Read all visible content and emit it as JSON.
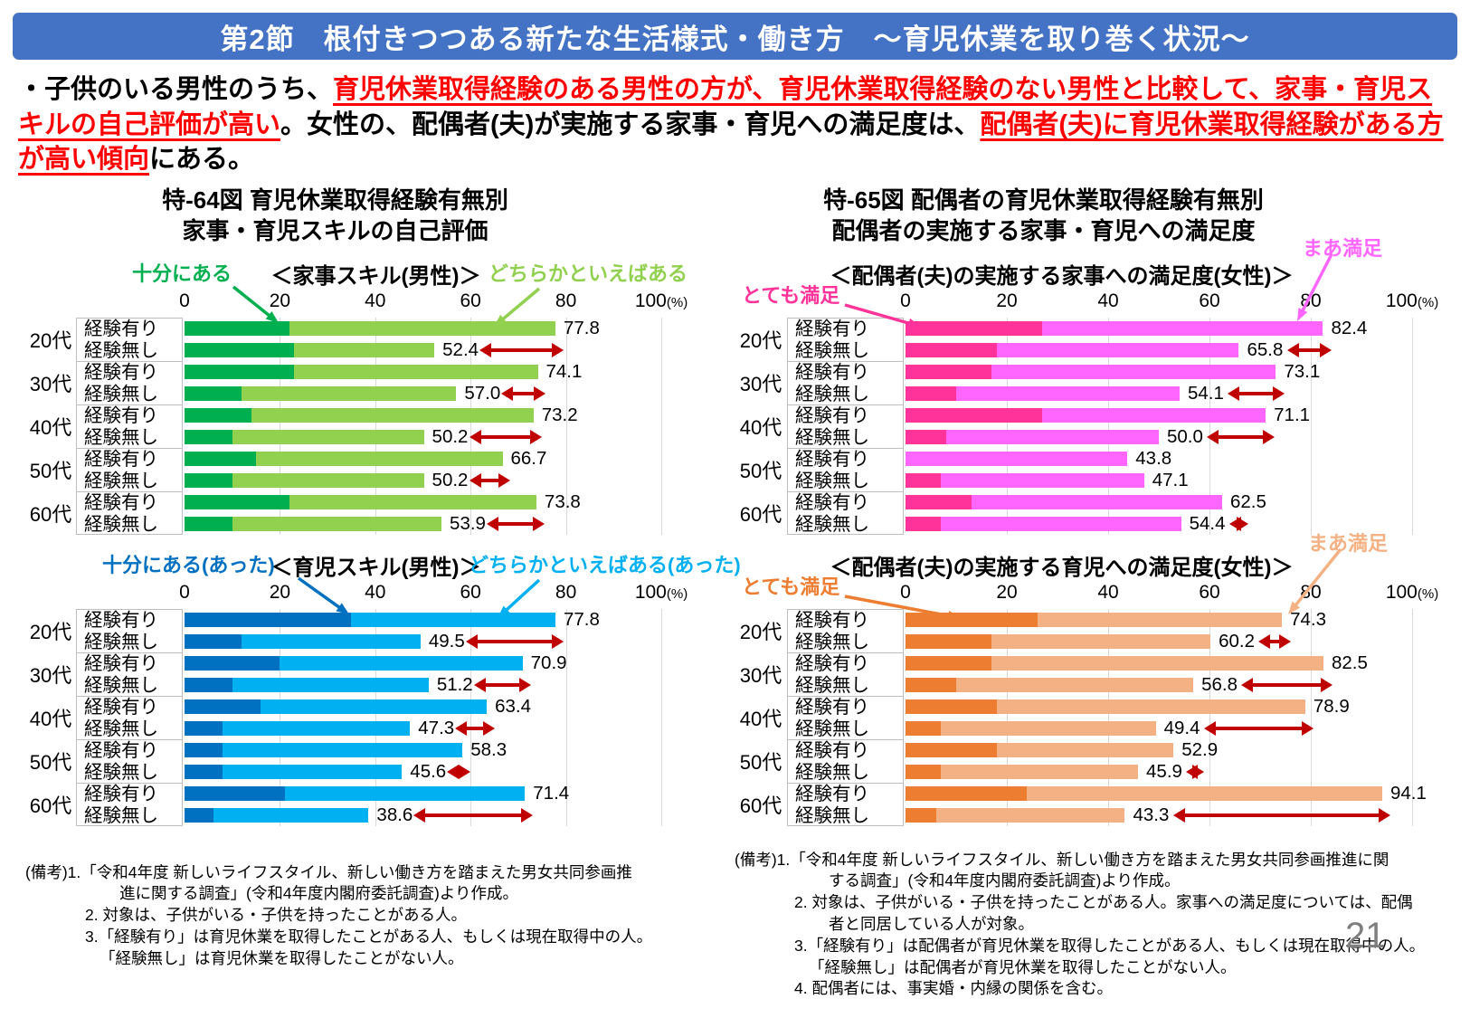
{
  "header": {
    "title": "第2節　根付きつつある新たな生活様式・働き方　～育児休業を取り巻く状況～",
    "bg_color": "#4472C4"
  },
  "lead": {
    "segments": [
      {
        "text": "・子供のいる男性のうち、",
        "style": "normal"
      },
      {
        "text": "育児休業取得経験のある男性の方が、育児休業取得経験のない男性と比較して、家事・育児スキルの自己評価が高い",
        "style": "em"
      },
      {
        "text": "。女性の、配偶者(夫)が実施する家事・育児への満足度は、",
        "style": "normal"
      },
      {
        "text": "配偶者(夫)に育児休業取得経験がある方が高い傾向",
        "style": "em"
      },
      {
        "text": "にある。",
        "style": "normal"
      }
    ],
    "em_color": "#FF0000"
  },
  "figures": [
    {
      "title_line1": "特-64図 育児休業取得経験有無別",
      "title_line2": "家事・育児スキルの自己評価",
      "notes": [
        {
          "text": "(備考)1.「令和4年度 新しいライフスタイル、新しい働き方を踏まえた男女共同参画推",
          "indent": 0
        },
        {
          "text": "進に関する調査」(令和4年度内閣府委託調査)より作成。",
          "indent": 104
        },
        {
          "text": "2. 対象は、子供がいる・子供を持ったことがある人。",
          "indent": 66
        },
        {
          "text": "3.「経験有り」は育児休業を取得したことがある人、もしくは現在取得中の人。",
          "indent": 66
        },
        {
          "text": "「経験無し」は育児休業を取得したことがない人。",
          "indent": 82
        }
      ]
    },
    {
      "title_line1": "特-65図 配偶者の育児休業取得経験有無別",
      "title_line2": "配偶者の実施する家事・育児への満足度",
      "notes": [
        {
          "text": "(備考)1.「令和4年度 新しいライフスタイル、新しい働き方を踏まえた男女共同参画推進に関",
          "indent": 0
        },
        {
          "text": "する調査」(令和4年度内閣府委託調査)より作成。",
          "indent": 104
        },
        {
          "text": "2. 対象は、子供がいる・子供を持ったことがある人。家事への満足度については、配偶",
          "indent": 66
        },
        {
          "text": "者と同居している人が対象。",
          "indent": 104
        },
        {
          "text": "3.「経験有り」は配偶者が育児休業を取得したことがある人、もしくは現在取得中の人。",
          "indent": 66
        },
        {
          "text": "「経験無し」は配偶者が育児休業を取得したことがない人。",
          "indent": 82
        },
        {
          "text": "4. 配偶者には、事実婚・内縁の関係を含む。",
          "indent": 66
        }
      ]
    }
  ],
  "chart_data": [
    {
      "type": "bar",
      "orientation": "horizontal",
      "stacked": true,
      "subtitle": "＜家事スキル(男性)＞",
      "xlim": [
        0,
        100
      ],
      "ticks": [
        0,
        20,
        40,
        60,
        80
      ],
      "max_tick": "100",
      "unit": "(%)",
      "arrow_color": "#C00000",
      "legend": [
        {
          "label": "十分にある",
          "color": "#00B050"
        },
        {
          "label": "どちらかといえばある",
          "color": "#92D050"
        }
      ],
      "groups": [
        {
          "age": "20代",
          "rows": [
            {
              "label": "経験有り",
              "total": 77.8,
              "strong": 22.0,
              "gap_arrow": null
            },
            {
              "label": "経験無し",
              "total": 52.4,
              "strong": 23.0,
              "gap_arrow": [
                61.9,
                79.5
              ]
            }
          ]
        },
        {
          "age": "30代",
          "rows": [
            {
              "label": "経験有り",
              "total": 74.1,
              "strong": 23.0,
              "gap_arrow": null
            },
            {
              "label": "経験無し",
              "total": 57.0,
              "strong": 12.0,
              "gap_arrow": [
                66.5,
                75.8
              ]
            }
          ]
        },
        {
          "age": "40代",
          "rows": [
            {
              "label": "経験有り",
              "total": 73.2,
              "strong": 14.0,
              "gap_arrow": null
            },
            {
              "label": "経験無し",
              "total": 50.2,
              "strong": 10.0,
              "gap_arrow": [
                59.7,
                74.9
              ]
            }
          ]
        },
        {
          "age": "50代",
          "rows": [
            {
              "label": "経験有り",
              "total": 66.7,
              "strong": 15.0,
              "gap_arrow": null
            },
            {
              "label": "経験無し",
              "total": 50.2,
              "strong": 10.0,
              "gap_arrow": [
                59.7,
                68.4
              ]
            }
          ]
        },
        {
          "age": "60代",
          "rows": [
            {
              "label": "経験有り",
              "total": 73.8,
              "strong": 22.0,
              "gap_arrow": null
            },
            {
              "label": "経験無し",
              "total": 53.9,
              "strong": 10.0,
              "gap_arrow": [
                63.4,
                75.5
              ]
            }
          ]
        }
      ]
    },
    {
      "type": "bar",
      "orientation": "horizontal",
      "stacked": true,
      "subtitle": "＜育児スキル(男性)＞",
      "xlim": [
        0,
        100
      ],
      "ticks": [
        0,
        20,
        40,
        60,
        80
      ],
      "max_tick": "100",
      "unit": "(%)",
      "arrow_color": "#C00000",
      "legend": [
        {
          "label": "十分にある(あった)",
          "color": "#0070C0"
        },
        {
          "label": "どちらかといえばある(あった)",
          "color": "#00B0F0"
        }
      ],
      "groups": [
        {
          "age": "20代",
          "rows": [
            {
              "label": "経験有り",
              "total": 77.8,
              "strong": 35.0,
              "gap_arrow": null
            },
            {
              "label": "経験無し",
              "total": 49.5,
              "strong": 12.0,
              "gap_arrow": [
                59.0,
                79.5
              ]
            }
          ]
        },
        {
          "age": "30代",
          "rows": [
            {
              "label": "経験有り",
              "total": 70.9,
              "strong": 20.0,
              "gap_arrow": null
            },
            {
              "label": "経験無し",
              "total": 51.2,
              "strong": 10.0,
              "gap_arrow": [
                60.7,
                72.6
              ]
            }
          ]
        },
        {
          "age": "40代",
          "rows": [
            {
              "label": "経験有り",
              "total": 63.4,
              "strong": 16.0,
              "gap_arrow": null
            },
            {
              "label": "経験無し",
              "total": 47.3,
              "strong": 8.0,
              "gap_arrow": [
                56.8,
                65.1
              ]
            }
          ]
        },
        {
          "age": "50代",
          "rows": [
            {
              "label": "経験有り",
              "total": 58.3,
              "strong": 8.0,
              "gap_arrow": null
            },
            {
              "label": "経験無し",
              "total": 45.6,
              "strong": 8.0,
              "gap_arrow": [
                55.1,
                60.0
              ]
            }
          ]
        },
        {
          "age": "60代",
          "rows": [
            {
              "label": "経験有り",
              "total": 71.4,
              "strong": 21.0,
              "gap_arrow": null
            },
            {
              "label": "経験無し",
              "total": 38.6,
              "strong": 6.0,
              "gap_arrow": [
                48.1,
                73.1
              ]
            }
          ]
        }
      ]
    },
    {
      "type": "bar",
      "orientation": "horizontal",
      "stacked": true,
      "subtitle": "＜配偶者(夫)の実施する家事への満足度(女性)＞",
      "xlim": [
        0,
        100
      ],
      "ticks": [
        0,
        20,
        40,
        60,
        80
      ],
      "max_tick": "100",
      "unit": "(%)",
      "arrow_color": "#C00000",
      "legend": [
        {
          "label": "とても満足",
          "color": "#FF3399"
        },
        {
          "label": "まあ満足",
          "color": "#FF66FF"
        }
      ],
      "groups": [
        {
          "age": "20代",
          "rows": [
            {
              "label": "経験有り",
              "total": 82.4,
              "strong": 27.0,
              "gap_arrow": null
            },
            {
              "label": "経験無し",
              "total": 65.8,
              "strong": 18.0,
              "gap_arrow": [
                75.3,
                84.1
              ]
            }
          ]
        },
        {
          "age": "30代",
          "rows": [
            {
              "label": "経験有り",
              "total": 73.1,
              "strong": 17.0,
              "gap_arrow": null
            },
            {
              "label": "経験無し",
              "total": 54.1,
              "strong": 10.0,
              "gap_arrow": [
                63.6,
                74.8
              ]
            }
          ]
        },
        {
          "age": "40代",
          "rows": [
            {
              "label": "経験有り",
              "total": 71.1,
              "strong": 27.0,
              "gap_arrow": null
            },
            {
              "label": "経験無し",
              "total": 50.0,
              "strong": 8.0,
              "gap_arrow": [
                59.5,
                72.8
              ]
            }
          ]
        },
        {
          "age": "50代",
          "rows": [
            {
              "label": "経験有り",
              "total": 43.8,
              "strong": 0.0,
              "gap_arrow": null
            },
            {
              "label": "経験無し",
              "total": 47.1,
              "strong": 7.0,
              "gap_arrow": null
            }
          ]
        },
        {
          "age": "60代",
          "rows": [
            {
              "label": "経験有り",
              "total": 62.5,
              "strong": 13.0,
              "gap_arrow": null
            },
            {
              "label": "経験無し",
              "total": 54.4,
              "strong": 7.0,
              "gap_arrow": [
                63.9,
                67.6
              ]
            }
          ]
        }
      ]
    },
    {
      "type": "bar",
      "orientation": "horizontal",
      "stacked": true,
      "subtitle": "＜配偶者(夫)の実施する育児への満足度(女性)＞",
      "xlim": [
        0,
        100
      ],
      "ticks": [
        0,
        20,
        40,
        60,
        80
      ],
      "max_tick": "100",
      "unit": "(%)",
      "arrow_color": "#C00000",
      "legend": [
        {
          "label": "とても満足",
          "color": "#ED7D31"
        },
        {
          "label": "まあ満足",
          "color": "#F4B183"
        }
      ],
      "groups": [
        {
          "age": "20代",
          "rows": [
            {
              "label": "経験有り",
              "total": 74.3,
              "strong": 26.0,
              "gap_arrow": null
            },
            {
              "label": "経験無し",
              "total": 60.2,
              "strong": 17.0,
              "gap_arrow": [
                69.7,
                76.0
              ]
            }
          ]
        },
        {
          "age": "30代",
          "rows": [
            {
              "label": "経験有り",
              "total": 82.5,
              "strong": 17.0,
              "gap_arrow": null
            },
            {
              "label": "経験無し",
              "total": 56.8,
              "strong": 10.0,
              "gap_arrow": [
                66.3,
                84.2
              ]
            }
          ]
        },
        {
          "age": "40代",
          "rows": [
            {
              "label": "経験有り",
              "total": 78.9,
              "strong": 18.0,
              "gap_arrow": null
            },
            {
              "label": "経験無し",
              "total": 49.4,
              "strong": 7.0,
              "gap_arrow": [
                58.9,
                80.6
              ]
            }
          ]
        },
        {
          "age": "50代",
          "rows": [
            {
              "label": "経験有り",
              "total": 52.9,
              "strong": 18.0,
              "gap_arrow": null
            },
            {
              "label": "経験無し",
              "total": 45.9,
              "strong": 7.0,
              "gap_arrow": [
                55.4,
                59.0
              ]
            }
          ]
        },
        {
          "age": "60代",
          "rows": [
            {
              "label": "経験有り",
              "total": 94.1,
              "strong": 24.0,
              "gap_arrow": null
            },
            {
              "label": "経験無し",
              "total": 43.3,
              "strong": 6.0,
              "gap_arrow": [
                52.8,
                95.8
              ]
            }
          ]
        }
      ]
    }
  ],
  "page": {
    "number": "21"
  }
}
